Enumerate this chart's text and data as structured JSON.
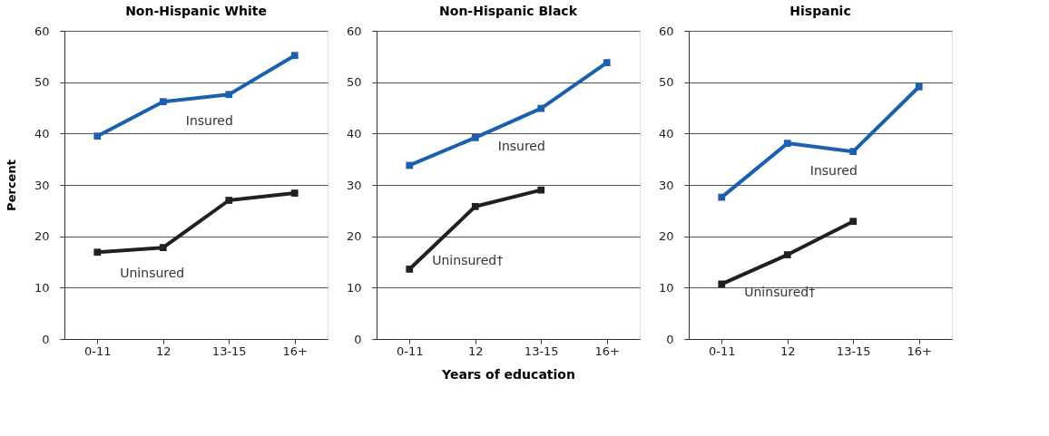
{
  "chart_data": [
    {
      "type": "line",
      "title": "Non-Hispanic White",
      "ylabel": "Percent",
      "categories": [
        "0-11",
        "12",
        "13-15",
        "16+"
      ],
      "ylim": [
        0,
        60
      ],
      "yticks": [
        0,
        10,
        20,
        30,
        40,
        50,
        60
      ],
      "grid": "y",
      "marker": "square",
      "line_style": "solid",
      "series": [
        {
          "name": "Insured",
          "color": "#1c5fae",
          "values": [
            39.5,
            46.2,
            47.6,
            55.2
          ]
        },
        {
          "name": "Uninsured",
          "color": "#231f20",
          "values": [
            16.9,
            17.8,
            27.0,
            28.4
          ]
        }
      ]
    },
    {
      "type": "line",
      "title": "Non-Hispanic Black",
      "xlabel": "Years of education",
      "categories": [
        "0-11",
        "12",
        "13-15",
        "16+"
      ],
      "ylim": [
        0,
        60
      ],
      "yticks": [
        0,
        10,
        20,
        30,
        40,
        50,
        60
      ],
      "grid": "y",
      "marker": "square",
      "line_style": "solid",
      "series": [
        {
          "name": "Insured",
          "color": "#1c5fae",
          "values": [
            33.8,
            39.2,
            44.9,
            53.8
          ]
        },
        {
          "name": "Uninsured†",
          "color": "#231f20",
          "values": [
            13.6,
            25.8,
            29.0,
            null
          ]
        }
      ]
    },
    {
      "type": "line",
      "title": "Hispanic",
      "categories": [
        "0-11",
        "12",
        "13-15",
        "16+"
      ],
      "ylim": [
        0,
        60
      ],
      "yticks": [
        0,
        10,
        20,
        30,
        40,
        50,
        60
      ],
      "grid": "y",
      "marker": "square",
      "line_style": "solid",
      "series": [
        {
          "name": "Insured",
          "color": "#1c5fae",
          "values": [
            27.6,
            38.1,
            36.5,
            49.1
          ]
        },
        {
          "name": "Uninsured†",
          "color": "#231f20",
          "values": [
            10.7,
            16.4,
            22.9,
            null
          ]
        }
      ]
    }
  ]
}
